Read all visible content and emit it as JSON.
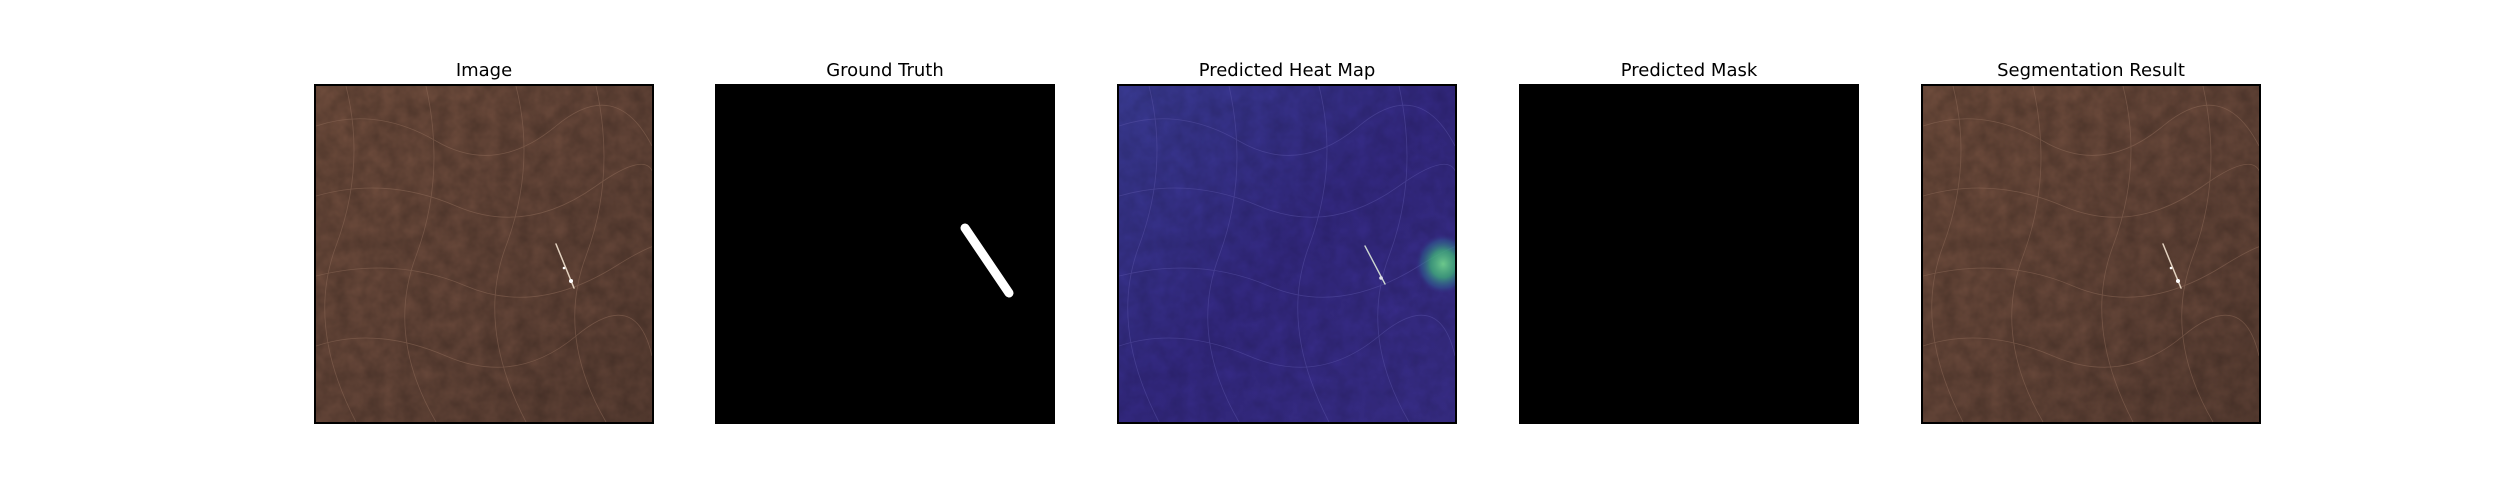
{
  "panels": [
    {
      "title": "Image"
    },
    {
      "title": "Ground Truth"
    },
    {
      "title": "Predicted Heat Map"
    },
    {
      "title": "Predicted Mask"
    },
    {
      "title": "Segmentation Result"
    }
  ],
  "colors": {
    "leather": "#6b4a3c",
    "leather_light": "#7d5747",
    "mask_background": "#000000",
    "mask_foreground": "#ffffff",
    "heat_low": "#3a2a8a",
    "heat_high": "#3fae7a"
  }
}
